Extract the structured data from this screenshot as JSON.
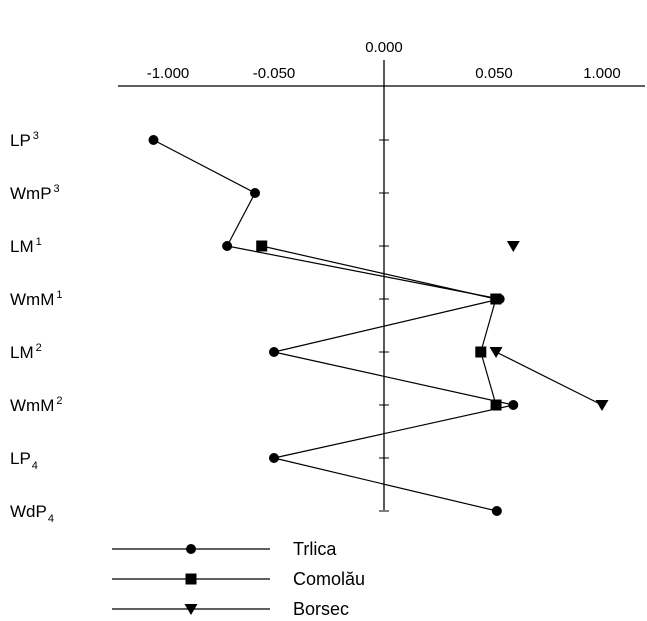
{
  "chart_data": {
    "type": "line",
    "orientation": "horizontal",
    "x_tick_labels": [
      "-1.000",
      "-0.050",
      "0.000",
      "0.050",
      "1.000"
    ],
    "x_tick_values": [
      -1.0,
      -0.05,
      0.0,
      0.05,
      1.0
    ],
    "categories": [
      {
        "base": "LP",
        "script": "3",
        "pos": "sup"
      },
      {
        "base": "WmP",
        "script": "3",
        "pos": "sup"
      },
      {
        "base": "LM",
        "script": "1",
        "pos": "sup"
      },
      {
        "base": "WmM",
        "script": "1",
        "pos": "sup"
      },
      {
        "base": "LM",
        "script": "2",
        "pos": "sup"
      },
      {
        "base": "WmM",
        "script": "2",
        "pos": "sup"
      },
      {
        "base": "LP",
        "script": "4",
        "pos": "sub"
      },
      {
        "base": "WdP",
        "script": "4",
        "pos": "sub"
      }
    ],
    "series": [
      {
        "name": "Trlica",
        "marker": "circle",
        "values": [
          -1.13,
          -0.22,
          -0.47,
          0.1,
          -0.05,
          0.22,
          -0.05,
          0.075
        ],
        "segments": [
          [
            0,
            1
          ],
          [
            1,
            2
          ],
          [
            2,
            3
          ],
          [
            3,
            4
          ],
          [
            4,
            5
          ],
          [
            5,
            6
          ],
          [
            6,
            7
          ]
        ]
      },
      {
        "name": "Comolău",
        "marker": "square",
        "values": [
          null,
          null,
          -0.16,
          0.066,
          0.044,
          0.068,
          null,
          null
        ],
        "segments": [
          [
            2,
            3
          ],
          [
            3,
            4
          ],
          [
            4,
            5
          ]
        ]
      },
      {
        "name": "Borsec",
        "marker": "triangle",
        "values": [
          null,
          null,
          0.22,
          null,
          0.068,
          1.0,
          null,
          null
        ],
        "segments": [
          [
            4,
            5
          ]
        ]
      }
    ],
    "legend_position": "bottom-left",
    "grid": false
  }
}
